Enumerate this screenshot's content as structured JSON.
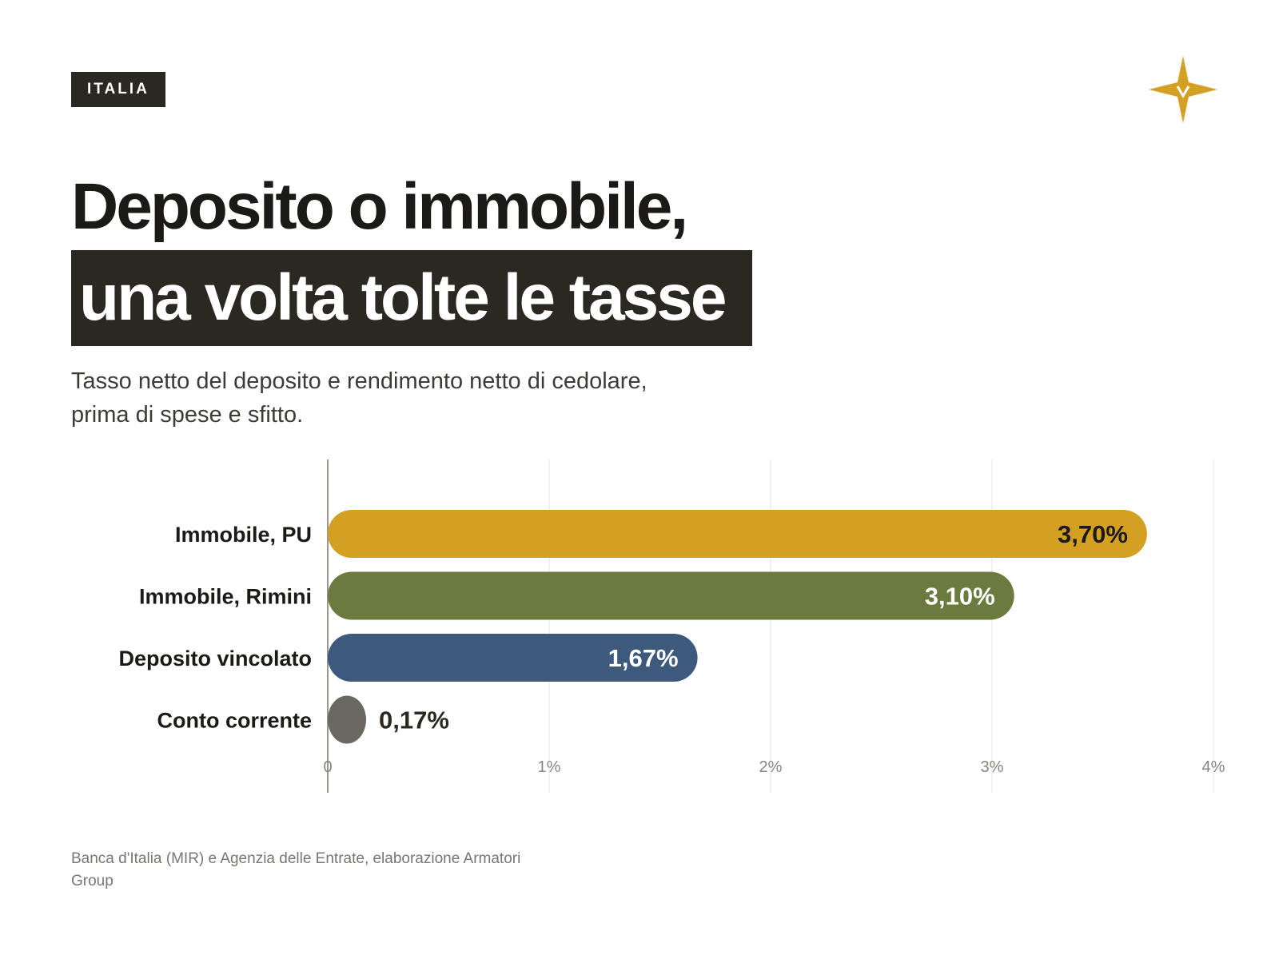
{
  "header": {
    "tag": "ITALIA",
    "title_line1": "Deposito o immobile,",
    "title_line2": "una volta tolte le tasse",
    "subtitle_line1": "Tasso netto del deposito e rendimento netto di cedolare,",
    "subtitle_line2": "prima di spese e sfitto."
  },
  "logo": {
    "icon": "four-pointed-star-icon",
    "color": "#d4a023"
  },
  "chart_data": {
    "type": "bar",
    "orientation": "horizontal",
    "categories": [
      "Immobile, PU",
      "Immobile, Rimini",
      "Deposito vincolato",
      "Conto corrente"
    ],
    "values": [
      3.7,
      3.1,
      1.67,
      0.17
    ],
    "value_labels": [
      "3,70%",
      "3,10%",
      "1,67%",
      "0,17%"
    ],
    "colors": [
      "#d4a023",
      "#6b7a3e",
      "#3d5a7c",
      "#6b6860"
    ],
    "label_colors": [
      "#1b1a17",
      "#ffffff",
      "#ffffff",
      "#2b2822"
    ],
    "xlim": [
      0,
      4
    ],
    "xticks": [
      0,
      1,
      2,
      3,
      4
    ],
    "xtick_labels": [
      "0",
      "1%",
      "2%",
      "3%",
      "4%"
    ],
    "grid": true,
    "title": "",
    "xlabel": "",
    "ylabel": ""
  },
  "footer": {
    "source_line1": "Banca d'Italia (MIR) e Agenzia delle Entrate, elaborazione Armatori",
    "source_line2": "Group"
  }
}
